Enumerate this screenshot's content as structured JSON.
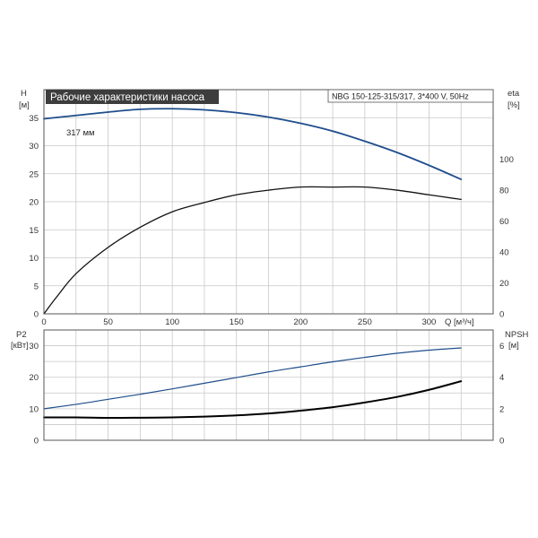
{
  "chart_data": {
    "type": "line",
    "title": "Рабочие характеристики насоса",
    "model_label": "NBG 150-125-315/317, 3*400 V, 50Hz",
    "curve_annotation": "317 мм",
    "colors": {
      "head": "#1f4e8c",
      "efficiency": "#111111",
      "power": "#1f4e8c",
      "npsh": "#000000",
      "title_bg": "#3d3d3d",
      "title_text": "#ffffff"
    },
    "grid": true,
    "top_panel": {
      "xlabel": "Q [м³/ч]",
      "xlim": [
        0,
        350
      ],
      "xticks": [
        0,
        50,
        100,
        150,
        200,
        250,
        300
      ],
      "left_axis": {
        "label_line1": "H",
        "label_line2": "[м]",
        "ylim": [
          0,
          40
        ],
        "ticks": [
          0,
          5,
          10,
          15,
          20,
          25,
          30,
          35
        ]
      },
      "right_axis": {
        "label_line1": "eta",
        "label_line2": "[%]",
        "ylim": [
          0,
          145
        ],
        "ticks": [
          0,
          20,
          40,
          60,
          80,
          100
        ]
      },
      "series": [
        {
          "name": "H",
          "axis": "left",
          "x": [
            0,
            25,
            50,
            75,
            100,
            125,
            150,
            175,
            200,
            225,
            250,
            275,
            300,
            325
          ],
          "y": [
            34.8,
            35.4,
            36.0,
            36.5,
            36.6,
            36.4,
            35.9,
            35.1,
            34.0,
            32.6,
            30.8,
            28.8,
            26.5,
            24.0
          ]
        },
        {
          "name": "eta",
          "axis": "right",
          "x": [
            0,
            10,
            25,
            50,
            75,
            100,
            125,
            150,
            175,
            200,
            225,
            250,
            275,
            300,
            325
          ],
          "y": [
            0,
            11,
            26,
            43,
            56,
            66,
            72,
            77,
            80,
            82,
            82,
            82,
            80,
            77,
            74
          ]
        }
      ]
    },
    "bottom_panel": {
      "xlim": [
        0,
        350
      ],
      "left_axis": {
        "label_line1": "P2",
        "label_line2": "[кВт]",
        "ylim": [
          0,
          35
        ],
        "ticks": [
          0,
          10,
          20,
          30
        ]
      },
      "right_axis": {
        "label_line1": "NPSH",
        "label_line2": "[м]",
        "ylim": [
          0,
          7
        ],
        "ticks": [
          0,
          2,
          4,
          6
        ]
      },
      "series": [
        {
          "name": "P2",
          "axis": "left",
          "x": [
            0,
            25,
            50,
            75,
            100,
            125,
            150,
            175,
            200,
            225,
            250,
            275,
            300,
            325
          ],
          "y": [
            10.0,
            11.4,
            13.0,
            14.6,
            16.3,
            18.1,
            19.9,
            21.7,
            23.3,
            24.9,
            26.3,
            27.6,
            28.6,
            29.3
          ]
        },
        {
          "name": "NPSH",
          "axis": "right",
          "x": [
            0,
            25,
            50,
            75,
            100,
            125,
            150,
            175,
            200,
            225,
            250,
            275,
            300,
            325
          ],
          "y": [
            1.45,
            1.45,
            1.42,
            1.43,
            1.45,
            1.5,
            1.58,
            1.7,
            1.88,
            2.1,
            2.4,
            2.75,
            3.2,
            3.75
          ]
        }
      ]
    }
  }
}
